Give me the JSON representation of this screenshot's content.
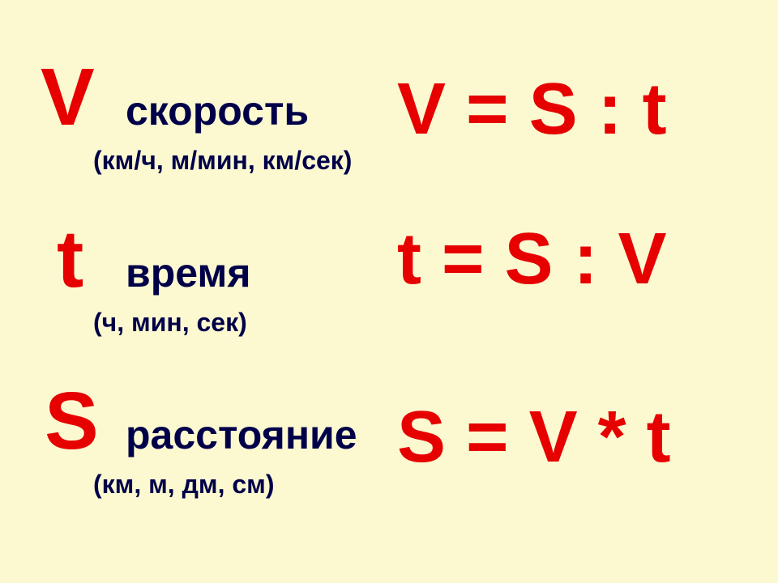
{
  "colors": {
    "background": "#fcf9d1",
    "symbol": "#e60000",
    "formula": "#e60000",
    "label": "#000049"
  },
  "typography": {
    "symbol_fontsize": 100,
    "name_fontsize": 50,
    "units_fontsize": 32,
    "formula_fontsize": 90,
    "font_family": "Arial",
    "font_weight": "bold"
  },
  "rows": [
    {
      "symbol": "V",
      "name": "скорость",
      "units": "(км/ч, м/мин, км/сек)",
      "formula": "V = S : t"
    },
    {
      "symbol": "t",
      "name": "время",
      "units": "(ч, мин, сек)",
      "formula": "t = S : V"
    },
    {
      "symbol": "S",
      "name": "расстояние",
      "units": "(км, м, дм, см)",
      "formula": "S = V * t"
    }
  ]
}
